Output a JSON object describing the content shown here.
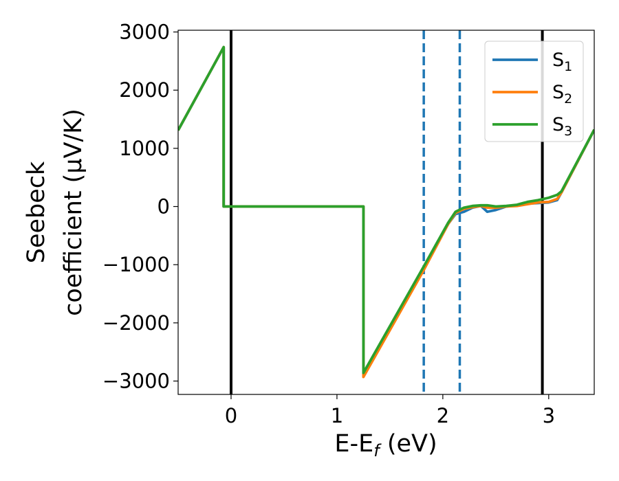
{
  "chart_data": {
    "type": "line",
    "xlabel": "E-E_f (eV)",
    "xlabel_parts": {
      "pre": "E-E",
      "sub": "f",
      "post": " (eV)"
    },
    "ylabel_lines": [
      "Seebeck",
      "coefficient  (μV/K)"
    ],
    "xlim": [
      -0.5,
      3.43
    ],
    "ylim": [
      -3230,
      3030
    ],
    "xticks": [
      0,
      1,
      2,
      3
    ],
    "xtick_labels": [
      "0",
      "1",
      "2",
      "3"
    ],
    "yticks": [
      3000,
      2000,
      1000,
      0,
      -1000,
      -2000,
      -3000
    ],
    "ytick_labels": [
      "3000",
      "2000",
      "1000",
      "0",
      "−1000",
      "−2000",
      "−3000"
    ],
    "grid": false,
    "legend_position": "upper-right",
    "vlines": [
      {
        "x": 0.0,
        "style": "solid",
        "color": "#000000"
      },
      {
        "x": 2.94,
        "style": "solid",
        "color": "#000000"
      },
      {
        "x": 1.82,
        "style": "dashed",
        "color": "#1f77b4"
      },
      {
        "x": 2.16,
        "style": "dashed",
        "color": "#1f77b4"
      }
    ],
    "series": [
      {
        "name": "S_1",
        "name_base": "S",
        "name_sub": "1",
        "color": "#1f77b4",
        "points": [
          [
            -0.5,
            1310
          ],
          [
            -0.07,
            2740
          ],
          [
            -0.07,
            0
          ],
          [
            1.25,
            0
          ],
          [
            1.25,
            -2900
          ],
          [
            1.82,
            -1060
          ],
          [
            2.05,
            -300
          ],
          [
            2.12,
            -130
          ],
          [
            2.2,
            -90
          ],
          [
            2.28,
            -20
          ],
          [
            2.36,
            10
          ],
          [
            2.42,
            -90
          ],
          [
            2.5,
            -60
          ],
          [
            2.6,
            0
          ],
          [
            2.7,
            20
          ],
          [
            2.8,
            50
          ],
          [
            2.9,
            60
          ],
          [
            3.0,
            70
          ],
          [
            3.08,
            110
          ],
          [
            3.12,
            240
          ],
          [
            3.43,
            1320
          ]
        ]
      },
      {
        "name": "S_2",
        "name_base": "S",
        "name_sub": "2",
        "color": "#ff7f0e",
        "points": [
          [
            -0.5,
            1310
          ],
          [
            -0.07,
            2740
          ],
          [
            -0.07,
            0
          ],
          [
            1.25,
            0
          ],
          [
            1.25,
            -2930
          ],
          [
            1.82,
            -1090
          ],
          [
            2.05,
            -300
          ],
          [
            2.12,
            -110
          ],
          [
            2.2,
            -40
          ],
          [
            2.28,
            -10
          ],
          [
            2.36,
            10
          ],
          [
            2.42,
            -20
          ],
          [
            2.5,
            -20
          ],
          [
            2.6,
            0
          ],
          [
            2.7,
            10
          ],
          [
            2.8,
            40
          ],
          [
            2.9,
            70
          ],
          [
            3.0,
            80
          ],
          [
            3.08,
            130
          ],
          [
            3.12,
            240
          ],
          [
            3.43,
            1320
          ]
        ]
      },
      {
        "name": "S_3",
        "name_base": "S",
        "name_sub": "3",
        "color": "#2ca02c",
        "points": [
          [
            -0.5,
            1310
          ],
          [
            -0.07,
            2740
          ],
          [
            -0.07,
            0
          ],
          [
            1.25,
            0
          ],
          [
            1.25,
            -2860
          ],
          [
            1.82,
            -1030
          ],
          [
            2.05,
            -280
          ],
          [
            2.12,
            -90
          ],
          [
            2.2,
            -20
          ],
          [
            2.28,
            10
          ],
          [
            2.36,
            20
          ],
          [
            2.42,
            20
          ],
          [
            2.5,
            0
          ],
          [
            2.6,
            10
          ],
          [
            2.7,
            30
          ],
          [
            2.8,
            80
          ],
          [
            2.9,
            110
          ],
          [
            3.0,
            150
          ],
          [
            3.08,
            200
          ],
          [
            3.12,
            260
          ],
          [
            3.43,
            1320
          ]
        ]
      }
    ]
  }
}
